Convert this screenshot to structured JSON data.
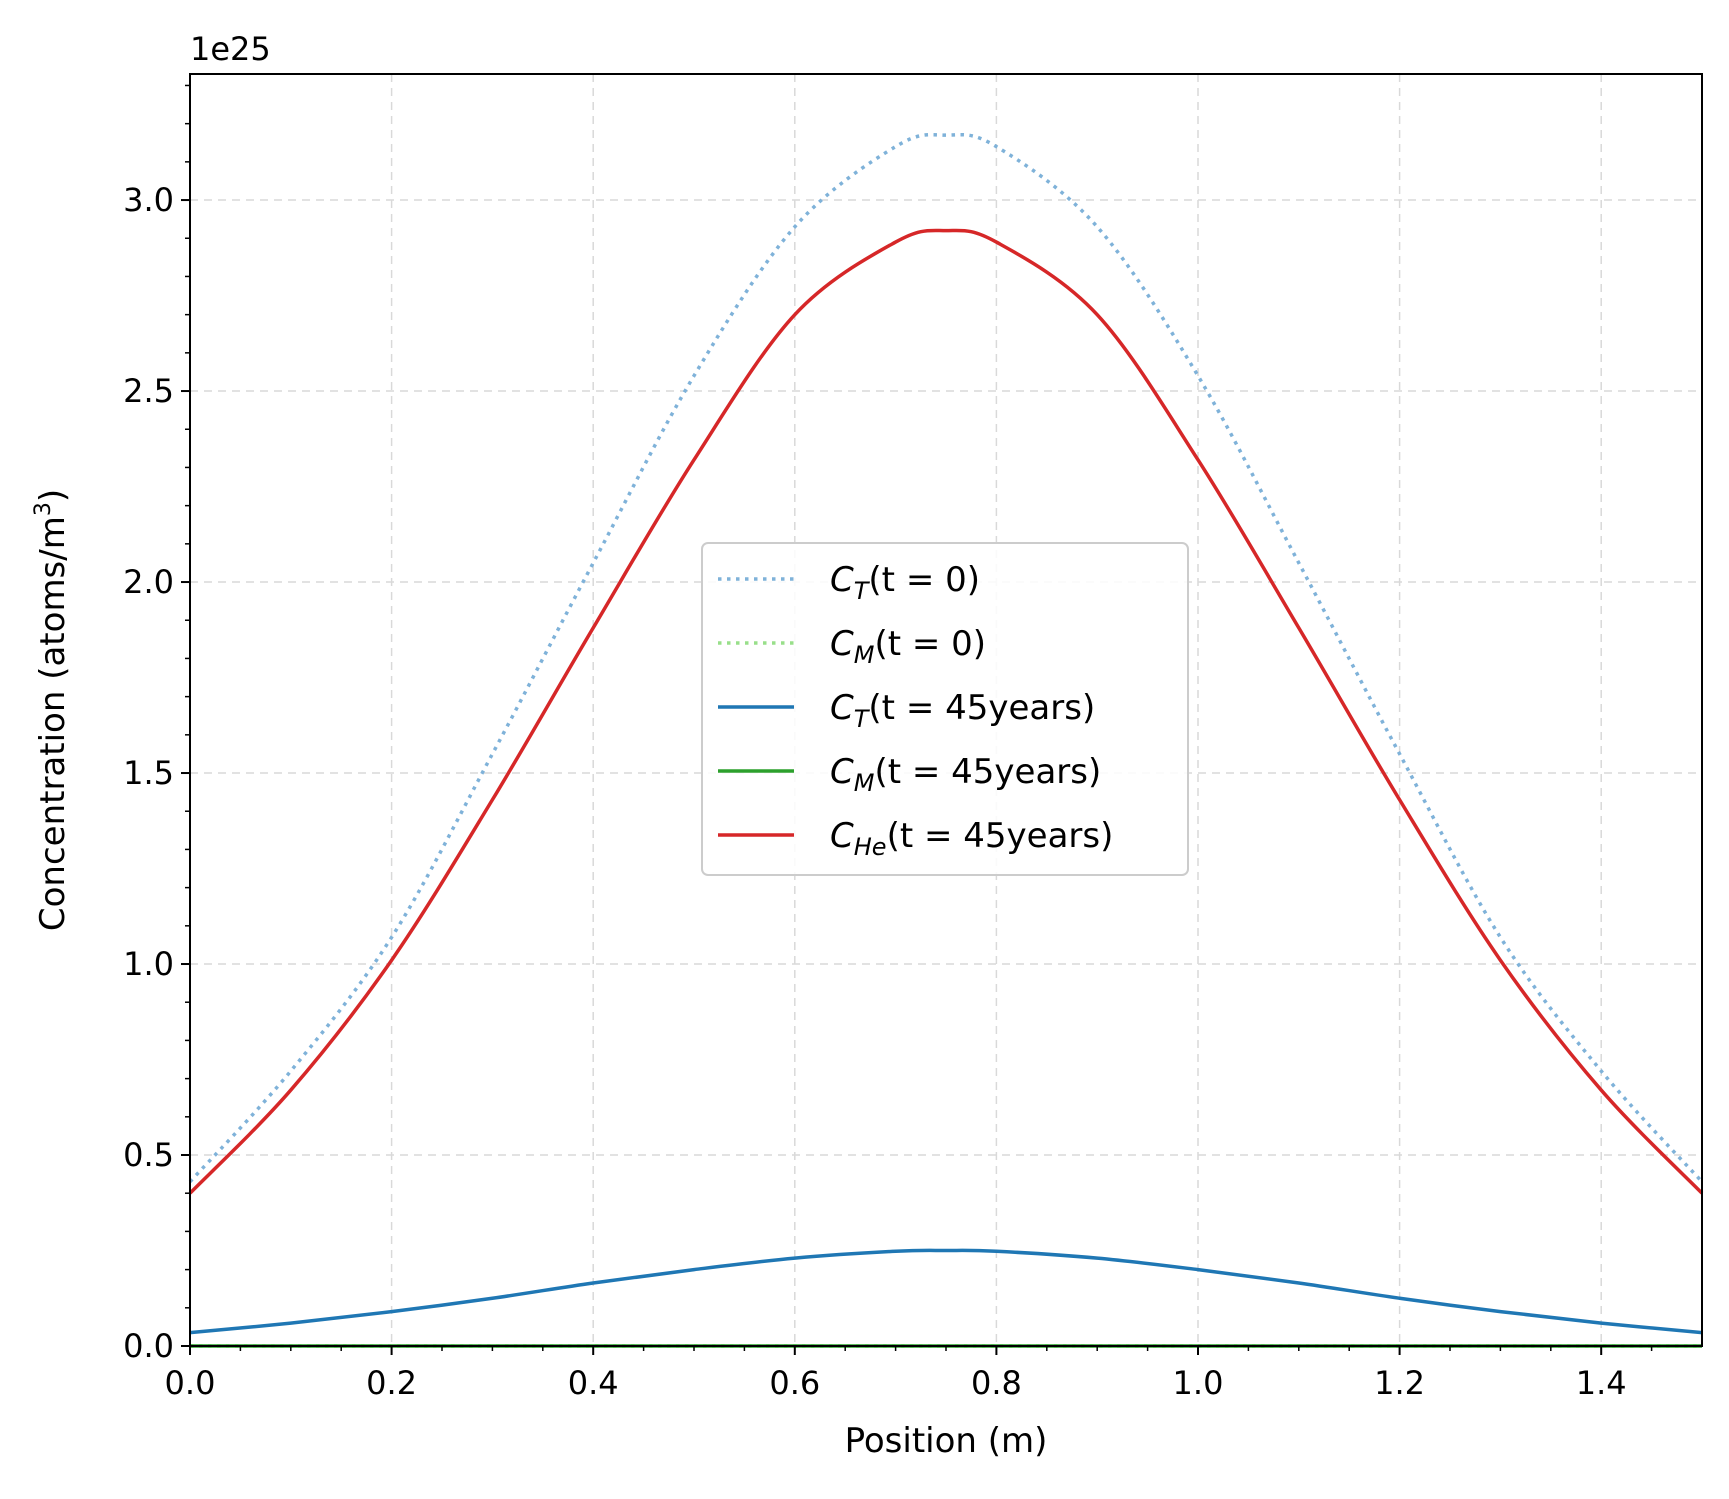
{
  "chart_data": {
    "type": "line",
    "xlabel": "Position (m)",
    "ylabel_main": "Concentration (atoms/m",
    "ylabel_sup": "3",
    "ylabel_end": ")",
    "offset_text": "1e25",
    "xlim": [
      0,
      1.5
    ],
    "ylim": [
      0,
      3.33
    ],
    "x_ticks": [
      0.0,
      0.2,
      0.4,
      0.6,
      0.8,
      1.0,
      1.2,
      1.4
    ],
    "x_tick_labels": [
      "0.0",
      "0.2",
      "0.4",
      "0.6",
      "0.8",
      "1.0",
      "1.2",
      "1.4"
    ],
    "y_ticks": [
      0.0,
      0.5,
      1.0,
      1.5,
      2.0,
      2.5,
      3.0
    ],
    "y_tick_labels": [
      "0.0",
      "0.5",
      "1.0",
      "1.5",
      "2.0",
      "2.5",
      "3.0"
    ],
    "grid": true,
    "legend_position": "center",
    "x": [
      0.0,
      0.1,
      0.2,
      0.3,
      0.4,
      0.5,
      0.6,
      0.7,
      0.75,
      0.8,
      0.9,
      1.0,
      1.1,
      1.2,
      1.3,
      1.4,
      1.5
    ],
    "series": [
      {
        "legend": {
          "base": "C",
          "sub": "T",
          "arg": "(t = 0)"
        },
        "color": "#7fb2d9",
        "style": "dotted",
        "values": [
          0.43,
          0.72,
          1.07,
          1.55,
          2.05,
          2.54,
          2.93,
          3.14,
          3.17,
          3.14,
          2.93,
          2.54,
          2.05,
          1.55,
          1.07,
          0.72,
          0.43
        ]
      },
      {
        "legend": {
          "base": "C",
          "sub": "M",
          "arg": "(t = 0)"
        },
        "color": "#98df8a",
        "style": "dotted",
        "values": [
          0.0,
          0.0,
          0.0,
          0.0,
          0.0,
          0.0,
          0.0,
          0.0,
          0.0,
          0.0,
          0.0,
          0.0,
          0.0,
          0.0,
          0.0,
          0.0,
          0.0
        ]
      },
      {
        "legend": {
          "base": "C",
          "sub": "T",
          "arg": "(t = 45years)"
        },
        "color": "#1f77b4",
        "style": "solid",
        "values": [
          0.035,
          0.06,
          0.09,
          0.125,
          0.165,
          0.2,
          0.23,
          0.248,
          0.25,
          0.248,
          0.23,
          0.2,
          0.165,
          0.125,
          0.09,
          0.06,
          0.035
        ]
      },
      {
        "legend": {
          "base": "C",
          "sub": "M",
          "arg": "(t = 45years)"
        },
        "color": "#2ca02c",
        "style": "solid",
        "values": [
          0.0,
          0.0,
          0.0,
          0.0,
          0.0,
          0.0,
          0.0,
          0.0,
          0.0,
          0.0,
          0.0,
          0.0,
          0.0,
          0.0,
          0.0,
          0.0,
          0.0
        ]
      },
      {
        "legend": {
          "base": "C",
          "sub": "He",
          "arg": "(t = 45years)"
        },
        "color": "#d62728",
        "style": "solid",
        "values": [
          0.4,
          0.67,
          1.01,
          1.43,
          1.88,
          2.32,
          2.7,
          2.89,
          2.92,
          2.89,
          2.7,
          2.32,
          1.88,
          1.43,
          1.01,
          0.67,
          0.4
        ]
      }
    ]
  }
}
